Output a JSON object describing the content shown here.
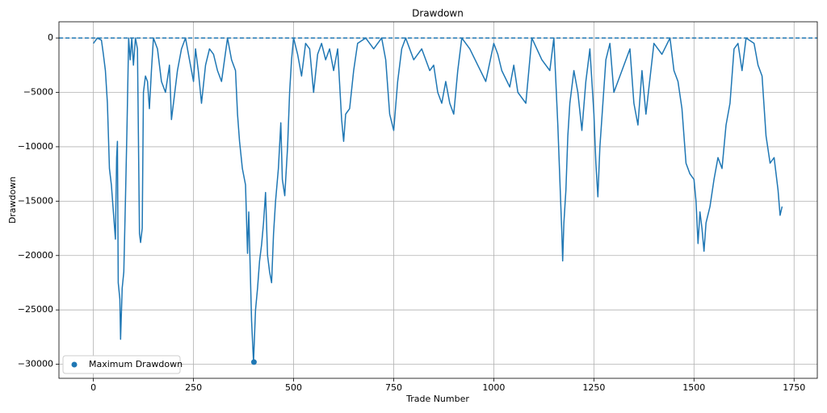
{
  "chart_data": {
    "type": "line",
    "title": "Drawdown",
    "xlabel": "Trade Number",
    "ylabel": "Drawdown",
    "xlim": [
      -86,
      1808
    ],
    "ylim": [
      -31290,
      1490
    ],
    "xticks": [
      0,
      250,
      500,
      750,
      1000,
      1250,
      1500,
      1750
    ],
    "yticks": [
      0,
      {
        "value": -5000,
        "label": "−5000"
      },
      {
        "value": -10000,
        "label": "−10000"
      },
      {
        "value": -15000,
        "label": "−15000"
      },
      {
        "value": -20000,
        "label": "−20000"
      },
      {
        "value": -25000,
        "label": "−25000"
      },
      {
        "value": -30000,
        "label": "−30000"
      }
    ],
    "grid": true,
    "legend": "lower left",
    "reference_line": {
      "value": 0,
      "style": "dashed",
      "color": "#1f77b4"
    },
    "series": [
      {
        "color": "#1f77b4",
        "x": [
          0,
          10,
          20,
          25,
          30,
          35,
          40,
          45,
          50,
          55,
          58,
          60,
          62,
          66,
          68,
          72,
          76,
          80,
          84,
          88,
          92,
          96,
          100,
          105,
          110,
          115,
          118,
          122,
          125,
          130,
          135,
          140,
          145,
          150,
          160,
          170,
          180,
          190,
          195,
          200,
          210,
          220,
          230,
          240,
          250,
          255,
          262,
          270,
          280,
          290,
          300,
          310,
          320,
          335,
          345,
          355,
          360,
          365,
          372,
          380,
          385,
          388,
          395,
          400,
          405,
          410,
          415,
          420,
          425,
          430,
          435,
          440,
          445,
          450,
          455,
          462,
          468,
          472,
          478,
          485,
          490,
          495,
          500,
          510,
          520,
          530,
          540,
          550,
          560,
          570,
          580,
          590,
          600,
          610,
          620,
          625,
          630,
          640,
          650,
          660,
          680,
          700,
          720,
          730,
          740,
          750,
          760,
          770,
          780,
          800,
          820,
          840,
          850,
          860,
          870,
          880,
          890,
          900,
          910,
          920,
          940,
          960,
          980,
          1000,
          1010,
          1020,
          1040,
          1050,
          1060,
          1080,
          1095,
          1120,
          1140,
          1150,
          1160,
          1165,
          1170,
          1172,
          1175,
          1180,
          1185,
          1190,
          1200,
          1210,
          1220,
          1230,
          1240,
          1250,
          1255,
          1260,
          1265,
          1280,
          1290,
          1300,
          1320,
          1340,
          1350,
          1360,
          1370,
          1380,
          1400,
          1420,
          1440,
          1450,
          1460,
          1470,
          1480,
          1490,
          1500,
          1505,
          1510,
          1515,
          1520,
          1525,
          1530,
          1540,
          1550,
          1560,
          1570,
          1580,
          1590,
          1600,
          1610,
          1620,
          1630,
          1650,
          1660,
          1670,
          1680,
          1690,
          1700,
          1710,
          1715,
          1720
        ],
        "values": [
          -500,
          0,
          -200,
          -1500,
          -3000,
          -6000,
          -12000,
          -13500,
          -16000,
          -18500,
          -11000,
          -9500,
          -22500,
          -24000,
          -27700,
          -23000,
          -21500,
          -15000,
          -8000,
          0,
          -2000,
          0,
          -2500,
          0,
          -1000,
          -18000,
          -18800,
          -17500,
          -5000,
          -3500,
          -4000,
          -6500,
          -3000,
          0,
          -1000,
          -4000,
          -5000,
          -2500,
          -7500,
          -6000,
          -3000,
          -1000,
          0,
          -2000,
          -4000,
          -1000,
          -3000,
          -6000,
          -2500,
          -1000,
          -1500,
          -3000,
          -4000,
          0,
          -2000,
          -3000,
          -7000,
          -9500,
          -12000,
          -13500,
          -19800,
          -16000,
          -26000,
          -29800,
          -25000,
          -23000,
          -20500,
          -19000,
          -17000,
          -14200,
          -20000,
          -21500,
          -22500,
          -18000,
          -15000,
          -12000,
          -7800,
          -13000,
          -14500,
          -10000,
          -5000,
          -2000,
          0,
          -1500,
          -3500,
          -500,
          -1000,
          -5000,
          -1500,
          -500,
          -2000,
          -1000,
          -3000,
          -1000,
          -7500,
          -9500,
          -7000,
          -6500,
          -3000,
          -500,
          0,
          -1000,
          0,
          -2000,
          -7000,
          -8500,
          -4000,
          -1000,
          0,
          -2000,
          -1000,
          -3000,
          -2500,
          -5000,
          -6000,
          -4000,
          -6000,
          -7000,
          -3000,
          0,
          -1000,
          -2500,
          -4000,
          -500,
          -1500,
          -3000,
          -4500,
          -2500,
          -5000,
          -6000,
          0,
          -2000,
          -3000,
          0,
          -8000,
          -13000,
          -18000,
          -20500,
          -17000,
          -14000,
          -9000,
          -6000,
          -3000,
          -5000,
          -8500,
          -4000,
          -1000,
          -7000,
          -11500,
          -14600,
          -10000,
          -2000,
          -500,
          -5000,
          -3000,
          -1000,
          -6000,
          -8000,
          -3000,
          -7000,
          -500,
          -1500,
          0,
          -3000,
          -4000,
          -6500,
          -11500,
          -12500,
          -13000,
          -15000,
          -18900,
          -16000,
          -17500,
          -19600,
          -17000,
          -15500,
          -13000,
          -11000,
          -12000,
          -8000,
          -6000,
          -1000,
          -500,
          -3000,
          0,
          -500,
          -2500,
          -3500,
          -9000,
          -11500,
          -11000,
          -14000,
          -16300,
          -15500
        ]
      },
      {
        "type": "scatter",
        "name": "Maximum Drawdown",
        "color": "#1f77b4",
        "x": [
          401
        ],
        "values": [
          -29800
        ]
      }
    ]
  }
}
